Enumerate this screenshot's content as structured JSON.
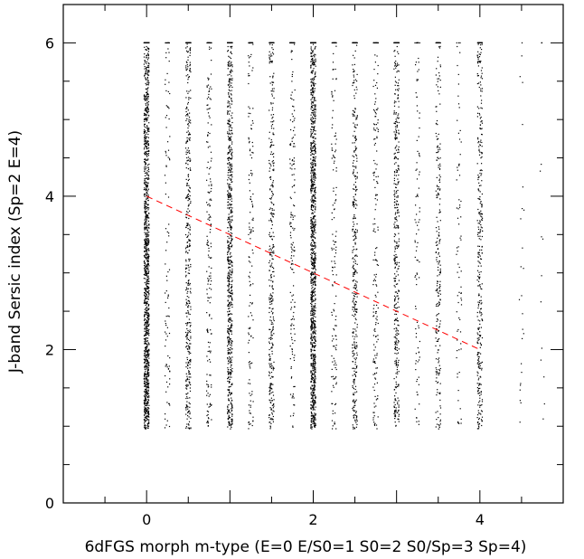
{
  "chart_data": {
    "type": "scatter",
    "title": "",
    "xlabel": "6dFGS morph m-type (E=0 E/S0=1 S0=2 S0/Sp=3 Sp=4)",
    "ylabel": "J-band Sersic index (Sp=2 E=4)",
    "xlim": [
      -1,
      5
    ],
    "ylim": [
      0,
      6.5
    ],
    "x_ticks": [
      0,
      2,
      4
    ],
    "y_ticks": [
      0,
      2,
      4,
      6
    ],
    "grid": false,
    "legend": "none",
    "colors": {
      "points": "#000000",
      "fit_line": "#ff0000"
    },
    "series": [
      {
        "kind": "points",
        "note_density_by_column": true,
        "columns": [
          {
            "x": 0.0,
            "relative_count": 1.0
          },
          {
            "x": 0.25,
            "relative_count": 0.08
          },
          {
            "x": 0.5,
            "relative_count": 0.35
          },
          {
            "x": 0.75,
            "relative_count": 0.15
          },
          {
            "x": 1.0,
            "relative_count": 0.6
          },
          {
            "x": 1.25,
            "relative_count": 0.12
          },
          {
            "x": 1.5,
            "relative_count": 0.3
          },
          {
            "x": 1.75,
            "relative_count": 0.14
          },
          {
            "x": 2.0,
            "relative_count": 0.95
          },
          {
            "x": 2.25,
            "relative_count": 0.12
          },
          {
            "x": 2.5,
            "relative_count": 0.3
          },
          {
            "x": 2.75,
            "relative_count": 0.14
          },
          {
            "x": 3.0,
            "relative_count": 0.35
          },
          {
            "x": 3.25,
            "relative_count": 0.08
          },
          {
            "x": 3.5,
            "relative_count": 0.2
          },
          {
            "x": 3.75,
            "relative_count": 0.06
          },
          {
            "x": 4.0,
            "relative_count": 0.3
          },
          {
            "x": 4.5,
            "relative_count": 0.02
          },
          {
            "x": 4.75,
            "relative_count": 0.01
          }
        ],
        "y_range": [
          0.7,
          6.0
        ]
      },
      {
        "kind": "line",
        "style": "dashed",
        "x": [
          0,
          4
        ],
        "y": [
          4,
          2
        ]
      }
    ]
  }
}
